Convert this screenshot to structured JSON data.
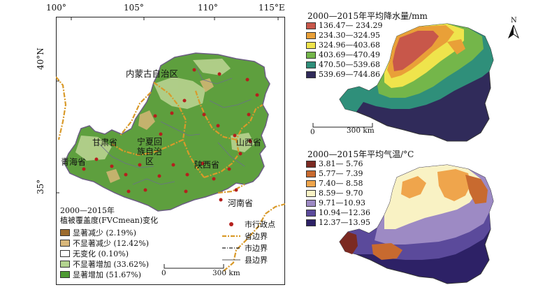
{
  "left_map": {
    "lon_ticks": [
      "100°",
      "105°",
      "110°",
      "115°E"
    ],
    "lat_ticks": [
      "40°N",
      "35°"
    ],
    "labels": {
      "nmg": "内蒙古自治区",
      "gansu": "甘肃省",
      "qinghai": "青海省",
      "ningxia": "宁夏回族自治区",
      "shaanxi": "陕西省",
      "shanxi": "山西省",
      "henan": "河南省"
    },
    "legend_title_1": "2000—2015年",
    "legend_title_2": "植被覆盖度(FVCmean)变化",
    "fvc_legend": [
      {
        "label": "显著减少 (2.19%)",
        "color": "#9c6b2e"
      },
      {
        "label": "不显著减少 (12.42%)",
        "color": "#d8b77a"
      },
      {
        "label": "无变化 (0.10%)",
        "color": "#ffffff"
      },
      {
        "label": "不显著增加 (33.62%)",
        "color": "#b3d38f"
      },
      {
        "label": "显著增加 (51.67%)",
        "color": "#4e9a34"
      }
    ],
    "boundary_legend": [
      {
        "label": "市行政点",
        "icon": "red-dot-icon"
      },
      {
        "label": "省边界",
        "icon": "province-boundary-icon"
      },
      {
        "label": "市边界",
        "icon": "city-boundary-icon"
      },
      {
        "label": "县边界",
        "icon": "county-boundary-icon"
      }
    ],
    "scale": {
      "zero": "0",
      "max": "300 km"
    }
  },
  "precip_map": {
    "title": "2000—2015年平均降水量/mm",
    "north": "N",
    "legend": [
      {
        "label": "136.47— 234.29",
        "color": "#c8574a"
      },
      {
        "label": "234.30—324.95",
        "color": "#e9a038"
      },
      {
        "label": "324.96—403.68",
        "color": "#efe44c"
      },
      {
        "label": "403.69—470.49",
        "color": "#74b64a"
      },
      {
        "label": "470.50—539.68",
        "color": "#2f8f7a"
      },
      {
        "label": "539.69—744.86",
        "color": "#302b5a"
      }
    ],
    "scale": {
      "zero": "0",
      "max": "300 km"
    }
  },
  "temp_map": {
    "title": "2000—2015年平均气温/°C",
    "legend": [
      {
        "label": "3.81— 5.76",
        "color": "#7b2a22"
      },
      {
        "label": "5.77— 7.39",
        "color": "#c86a2f"
      },
      {
        "label": "7.40— 8.58",
        "color": "#efa54c"
      },
      {
        "label": "8.59— 9.70",
        "color": "#f9f2c4"
      },
      {
        "label": "9.71—10.93",
        "color": "#9d8ac4"
      },
      {
        "label": "10.94—12.36",
        "color": "#5b4a9b"
      },
      {
        "label": "12.37—13.95",
        "color": "#2d2166"
      }
    ]
  }
}
